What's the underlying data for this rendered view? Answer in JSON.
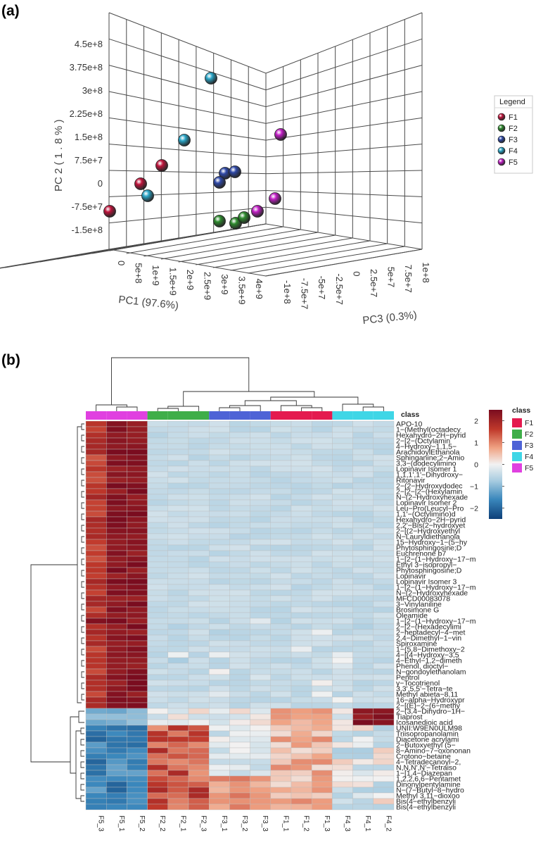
{
  "panel_labels": {
    "a": "(a)",
    "b": "(b)"
  },
  "colors": {
    "F1": "#c0143c",
    "F2": "#2e8b2e",
    "F3": "#2f49a8",
    "F4": "#2aa6c8",
    "F5": "#c21ec6"
  },
  "class_colors": {
    "F1": "#e41a4f",
    "F2": "#3fae49",
    "F3": "#4e63d6",
    "F4": "#3fd6e6",
    "F5": "#e040e0"
  },
  "chart_data": [
    {
      "type": "scatter",
      "subtype": "3d-pca",
      "title": "",
      "axes": {
        "x": {
          "label": "PC1 (97.6%)",
          "ticks": [
            "0",
            "5e+8",
            "1e+9",
            "1.5e+9",
            "2e+9",
            "2.5e+9",
            "3e+9",
            "3.5e+9",
            "4e+9"
          ]
        },
        "y": {
          "label": "PC 2 ( 1 . 8 % )",
          "ticks": [
            "4.5e+8",
            "3.75e+8",
            "3e+8",
            "2.25e+8",
            "1.5e+8",
            "7.5e+7",
            "0",
            "-7.5e+7",
            "-1.5e+8"
          ]
        },
        "z": {
          "label": "PC3 (0.3%)",
          "ticks": [
            "-1e+8",
            "-7.5e+7",
            "-5e+7",
            "-2.5e+7",
            "0",
            "2.5e+7",
            "5e+7",
            "7.5e+7",
            "1e+8"
          ]
        }
      },
      "legend": {
        "title": "Legend",
        "entries": [
          "F1",
          "F2",
          "F3",
          "F4",
          "F5"
        ],
        "position": "right"
      },
      "points_screen_order": [
        {
          "group": "F4",
          "label": "F4 replicate a"
        },
        {
          "group": "F4",
          "label": "F4 replicate b"
        },
        {
          "group": "F1",
          "label": "F1 replicate a"
        },
        {
          "group": "F1",
          "label": "F1 replicate b"
        },
        {
          "group": "F4",
          "label": "F4 replicate c"
        },
        {
          "group": "F1",
          "label": "F1 replicate c"
        },
        {
          "group": "F3",
          "label": "F3 replicate a"
        },
        {
          "group": "F3",
          "label": "F3 replicate b"
        },
        {
          "group": "F3",
          "label": "F3 replicate c"
        },
        {
          "group": "F5",
          "label": "F5 replicate a"
        },
        {
          "group": "F5",
          "label": "F5 replicate b"
        },
        {
          "group": "F5",
          "label": "F5 replicate c"
        },
        {
          "group": "F2",
          "label": "F2 replicate a"
        },
        {
          "group": "F2",
          "label": "F2 replicate b"
        },
        {
          "group": "F2",
          "label": "F2 replicate c"
        }
      ]
    },
    {
      "type": "heatmap",
      "title": "",
      "columns": [
        "F5_3",
        "F5_1",
        "F5_2",
        "F2_2",
        "F2_1",
        "F2_3",
        "F3_1",
        "F3_2",
        "F3_3",
        "F1_1",
        "F1_2",
        "F1_3",
        "F4_3",
        "F4_1",
        "F4_2"
      ],
      "column_classes": [
        "F5",
        "F5",
        "F5",
        "F2",
        "F2",
        "F2",
        "F3",
        "F3",
        "F3",
        "F1",
        "F1",
        "F1",
        "F4",
        "F4",
        "F4"
      ],
      "class_label": "class",
      "class_legend": {
        "title": "class",
        "entries": [
          "F1",
          "F2",
          "F3",
          "F4",
          "F5"
        ]
      },
      "colorbar": {
        "min": -2.5,
        "max": 2.5,
        "ticks": [
          "2",
          "1",
          "0",
          "−1",
          "−2"
        ]
      },
      "rows": [
        "APO-10",
        "1−(Methyl(octadecy",
        "Hexahydro−2H−pyrid",
        "2−[2−(Octylamin",
        "4−Hydroxy−1,1,5−",
        "ArachidoylEthanola",
        "Sphinganine;2−Amio",
        "3,3−(dodecylimino",
        "Lopinavir Isomer 1",
        "1,1,1',1'−Dihydroxy−",
        "Ritonavir",
        "2−(2−Hydroxydodec",
        "2−[2−[2−(Hexylamin",
        "N−(2−Hydroxyhexade",
        "Lopinavir Isomer 2",
        "Leu−Pro(Leucyl−Pro",
        "1,1'−(Octylimino)d",
        "Hexahydro−2H−pyrid",
        "2,2'−Bis(2−hydroxyet",
        "2−[(2−Hydroxyethyl",
        "N−Lauryldiethanola",
        "15−Hydroxy−1−(5−hy",
        "Phytosphingosine;D",
        "Euchrenone b7",
        "1−[2−(1−Hydroxy−17−m",
        "Ethyl 3−isopropyl−",
        "Phytosphingosine;D",
        "Lopinavir",
        "Lopinavir Isomer 3",
        "1−[2−(1−Hydroxy−17−m",
        "N−(2−Hydroxyhexade",
        "MFCD00083078",
        "3−Vinylaniline",
        "Brosimone G",
        "Oleamide",
        "1−[2−(1−Hydroxy−17−m",
        "2−[2−(Hexadecylimi",
        "2−heptadecyl−4−met",
        "2,4−Dimethyl−1−vin",
        "Spiroxamine",
        "1−(5,8−Dimethoxy−2",
        "4−[(4−Hydroxy−3,5",
        "4−Ethyl−1,2−dimeth",
        "Phenol, dioctyl−",
        "N−gondoylethanolam",
        "Pentrol",
        "γ−Tocotrienol",
        "3,3',5,5'−Tetra−te",
        "Methyl abieta−8,11",
        "16−alpha−Hydroxypr",
        "2−[(E)−2−(6−methy",
        "2−(3,4−Dihydro−1H−",
        "Tiaprost",
        "Icosanedioic acid",
        "UNII:W9EN0ULM98",
        "Triisopropanolamin",
        "Diacetone acrylami",
        "2−Butoxyethyl (5−",
        "8−Amino−7−oxononan",
        "Crotono−betaine",
        "4−Tetradecanoyl−2,",
        "N,N,N',N'−Tetraiso",
        "1−[1,4−Diazepan",
        "1,2,2,6,6−Pentamet",
        "Dinonylpentylamine",
        "N−(7−Butyl−8−hydro",
        "Methyl 3,11−dioxoo",
        "Bis(4−ethylbenzyli",
        "Bis(4−ethylbenzyli"
      ]
    }
  ]
}
